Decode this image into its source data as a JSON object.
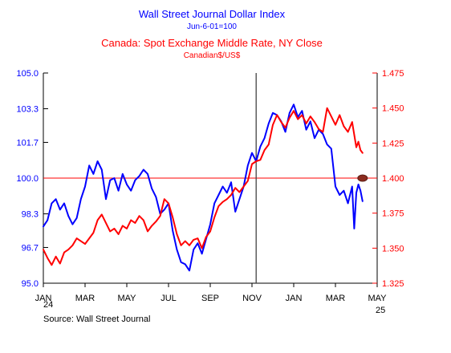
{
  "chart_data": {
    "type": "line",
    "titles": {
      "line1": "Wall Street Journal Dollar Index",
      "line2": "Jun-6-01=100",
      "line3": "Canada: Spot Exchange Middle Rate, NY Close",
      "line4": "Canadian$/US$"
    },
    "colors": {
      "blue": "#0000ff",
      "red": "#ff0000",
      "marker": "#8b2b1e"
    },
    "x_axis": {
      "tick_labels": [
        "JAN",
        "MAR",
        "MAY",
        "JUL",
        "SEP",
        "NOV",
        "JAN",
        "MAR",
        "MAY"
      ],
      "year_labels": [
        "24",
        "25"
      ]
    },
    "left_axis": {
      "ylim": [
        95.0,
        105.0
      ],
      "tick_labels": [
        "105.0",
        "103.3",
        "101.7",
        "100.0",
        "98.3",
        "96.7",
        "95.0"
      ]
    },
    "right_axis": {
      "ylim": [
        1.325,
        1.475
      ],
      "tick_labels": [
        "1.475",
        "1.450",
        "1.425",
        "1.400",
        "1.375",
        "1.350",
        "1.325"
      ]
    },
    "reference_line": {
      "value": 100.0
    },
    "vertical_marker": {
      "month": 10.2
    },
    "series": [
      {
        "name": "Wall Street Journal Dollar Index",
        "axis": "left",
        "points": [
          [
            0.0,
            97.7
          ],
          [
            0.2,
            98.0
          ],
          [
            0.4,
            98.8
          ],
          [
            0.6,
            99.0
          ],
          [
            0.8,
            98.5
          ],
          [
            1.0,
            98.8
          ],
          [
            1.2,
            98.2
          ],
          [
            1.4,
            97.8
          ],
          [
            1.6,
            98.1
          ],
          [
            1.8,
            99.0
          ],
          [
            2.0,
            99.6
          ],
          [
            2.2,
            100.6
          ],
          [
            2.4,
            100.2
          ],
          [
            2.6,
            100.8
          ],
          [
            2.8,
            100.4
          ],
          [
            3.0,
            99.0
          ],
          [
            3.2,
            99.9
          ],
          [
            3.4,
            100.0
          ],
          [
            3.6,
            99.4
          ],
          [
            3.8,
            100.2
          ],
          [
            4.0,
            99.7
          ],
          [
            4.2,
            99.4
          ],
          [
            4.4,
            99.9
          ],
          [
            4.6,
            100.1
          ],
          [
            4.8,
            100.4
          ],
          [
            5.0,
            100.2
          ],
          [
            5.2,
            99.5
          ],
          [
            5.4,
            99.1
          ],
          [
            5.6,
            98.3
          ],
          [
            5.8,
            98.5
          ],
          [
            6.0,
            98.8
          ],
          [
            6.2,
            97.5
          ],
          [
            6.4,
            96.6
          ],
          [
            6.6,
            96.0
          ],
          [
            6.8,
            95.9
          ],
          [
            7.0,
            95.6
          ],
          [
            7.2,
            96.6
          ],
          [
            7.4,
            96.9
          ],
          [
            7.6,
            96.4
          ],
          [
            7.8,
            97.1
          ],
          [
            8.0,
            97.8
          ],
          [
            8.2,
            98.8
          ],
          [
            8.4,
            99.2
          ],
          [
            8.6,
            99.6
          ],
          [
            8.8,
            99.3
          ],
          [
            9.0,
            99.8
          ],
          [
            9.2,
            98.4
          ],
          [
            9.4,
            99.0
          ],
          [
            9.6,
            99.6
          ],
          [
            9.8,
            100.6
          ],
          [
            10.0,
            101.2
          ],
          [
            10.2,
            100.8
          ],
          [
            10.4,
            101.5
          ],
          [
            10.6,
            101.9
          ],
          [
            10.8,
            102.6
          ],
          [
            11.0,
            103.1
          ],
          [
            11.2,
            103.0
          ],
          [
            11.4,
            102.7
          ],
          [
            11.6,
            102.2
          ],
          [
            11.8,
            103.1
          ],
          [
            12.0,
            103.5
          ],
          [
            12.2,
            102.9
          ],
          [
            12.4,
            103.2
          ],
          [
            12.6,
            102.3
          ],
          [
            12.8,
            102.7
          ],
          [
            13.0,
            101.9
          ],
          [
            13.2,
            102.3
          ],
          [
            13.4,
            102.1
          ],
          [
            13.6,
            101.6
          ],
          [
            13.8,
            101.4
          ],
          [
            14.0,
            99.6
          ],
          [
            14.2,
            99.2
          ],
          [
            14.4,
            99.4
          ],
          [
            14.6,
            98.8
          ],
          [
            14.8,
            99.6
          ],
          [
            14.9,
            97.6
          ],
          [
            15.0,
            99.3
          ],
          [
            15.1,
            99.7
          ],
          [
            15.2,
            99.4
          ],
          [
            15.3,
            98.9
          ]
        ]
      },
      {
        "name": "Canada: Spot Exchange Middle Rate, NY Close",
        "axis": "right",
        "points": [
          [
            0.0,
            1.349
          ],
          [
            0.2,
            1.343
          ],
          [
            0.4,
            1.338
          ],
          [
            0.6,
            1.344
          ],
          [
            0.8,
            1.339
          ],
          [
            1.0,
            1.347
          ],
          [
            1.2,
            1.349
          ],
          [
            1.4,
            1.352
          ],
          [
            1.6,
            1.357
          ],
          [
            1.8,
            1.355
          ],
          [
            2.0,
            1.353
          ],
          [
            2.2,
            1.357
          ],
          [
            2.4,
            1.361
          ],
          [
            2.6,
            1.37
          ],
          [
            2.8,
            1.374
          ],
          [
            3.0,
            1.368
          ],
          [
            3.2,
            1.362
          ],
          [
            3.4,
            1.364
          ],
          [
            3.6,
            1.36
          ],
          [
            3.8,
            1.366
          ],
          [
            4.0,
            1.364
          ],
          [
            4.2,
            1.37
          ],
          [
            4.4,
            1.368
          ],
          [
            4.6,
            1.373
          ],
          [
            4.8,
            1.37
          ],
          [
            5.0,
            1.362
          ],
          [
            5.2,
            1.366
          ],
          [
            5.4,
            1.369
          ],
          [
            5.6,
            1.373
          ],
          [
            5.8,
            1.385
          ],
          [
            6.0,
            1.382
          ],
          [
            6.2,
            1.372
          ],
          [
            6.4,
            1.36
          ],
          [
            6.6,
            1.352
          ],
          [
            6.8,
            1.355
          ],
          [
            7.0,
            1.352
          ],
          [
            7.2,
            1.356
          ],
          [
            7.4,
            1.357
          ],
          [
            7.6,
            1.35
          ],
          [
            7.8,
            1.358
          ],
          [
            8.0,
            1.362
          ],
          [
            8.2,
            1.372
          ],
          [
            8.4,
            1.38
          ],
          [
            8.6,
            1.383
          ],
          [
            8.8,
            1.385
          ],
          [
            9.0,
            1.388
          ],
          [
            9.2,
            1.393
          ],
          [
            9.4,
            1.39
          ],
          [
            9.6,
            1.394
          ],
          [
            9.8,
            1.398
          ],
          [
            10.0,
            1.41
          ],
          [
            10.2,
            1.412
          ],
          [
            10.4,
            1.413
          ],
          [
            10.6,
            1.42
          ],
          [
            10.8,
            1.424
          ],
          [
            11.0,
            1.438
          ],
          [
            11.2,
            1.445
          ],
          [
            11.4,
            1.44
          ],
          [
            11.6,
            1.436
          ],
          [
            11.8,
            1.443
          ],
          [
            12.0,
            1.448
          ],
          [
            12.2,
            1.442
          ],
          [
            12.4,
            1.445
          ],
          [
            12.6,
            1.439
          ],
          [
            12.8,
            1.444
          ],
          [
            13.0,
            1.44
          ],
          [
            13.2,
            1.435
          ],
          [
            13.4,
            1.433
          ],
          [
            13.6,
            1.45
          ],
          [
            13.8,
            1.444
          ],
          [
            14.0,
            1.438
          ],
          [
            14.2,
            1.445
          ],
          [
            14.4,
            1.437
          ],
          [
            14.6,
            1.433
          ],
          [
            14.8,
            1.44
          ],
          [
            15.0,
            1.422
          ],
          [
            15.1,
            1.426
          ],
          [
            15.2,
            1.42
          ],
          [
            15.3,
            1.418
          ]
        ]
      }
    ],
    "end_marker": {
      "month": 15.3,
      "value": 100.0
    },
    "source": "Source:  Wall Street Journal"
  }
}
